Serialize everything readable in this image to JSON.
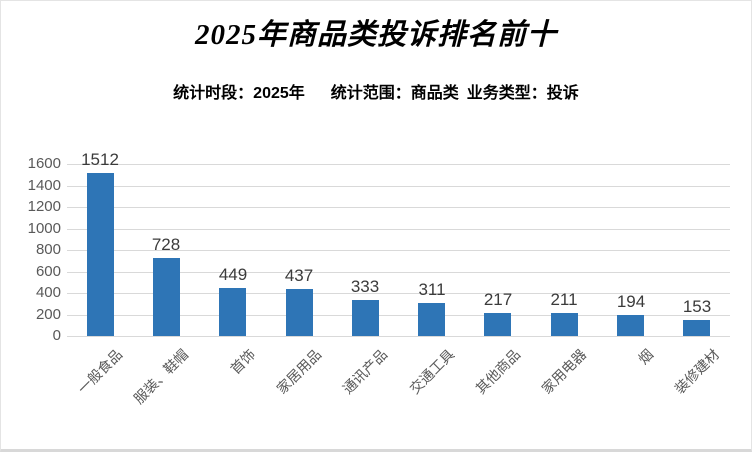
{
  "page": {
    "background": "#ffffff",
    "border_color": "#d8d8d8"
  },
  "header": {
    "title": "2025年商品类投诉排名前十",
    "subtitle": {
      "period": "统计时段：2025年",
      "scope": "统计范围：商品类",
      "business_type": "业务类型：投诉"
    }
  },
  "chart_data": {
    "type": "bar",
    "title": "2025年商品类投诉排名前十",
    "categories": [
      "一般食品",
      "服装、鞋帽",
      "首饰",
      "家居用品",
      "通讯产品",
      "交通工具",
      "其他商品",
      "家用电器",
      "烟",
      "装修建材"
    ],
    "values": [
      1512,
      728,
      449,
      437,
      333,
      311,
      217,
      211,
      194,
      153
    ],
    "xlabel": "",
    "ylabel": "",
    "ylim": [
      0,
      1600
    ],
    "yticks": [
      0,
      200,
      400,
      600,
      800,
      1000,
      1200,
      1400,
      1600
    ],
    "grid": true,
    "legend": false,
    "data_labels": true,
    "x_label_rotation_deg": 45,
    "bar_color": "#2E75B6",
    "gridline_color": "#D9D9D9",
    "axis_label_color": "#595959",
    "data_label_color": "#3B3B3B"
  }
}
